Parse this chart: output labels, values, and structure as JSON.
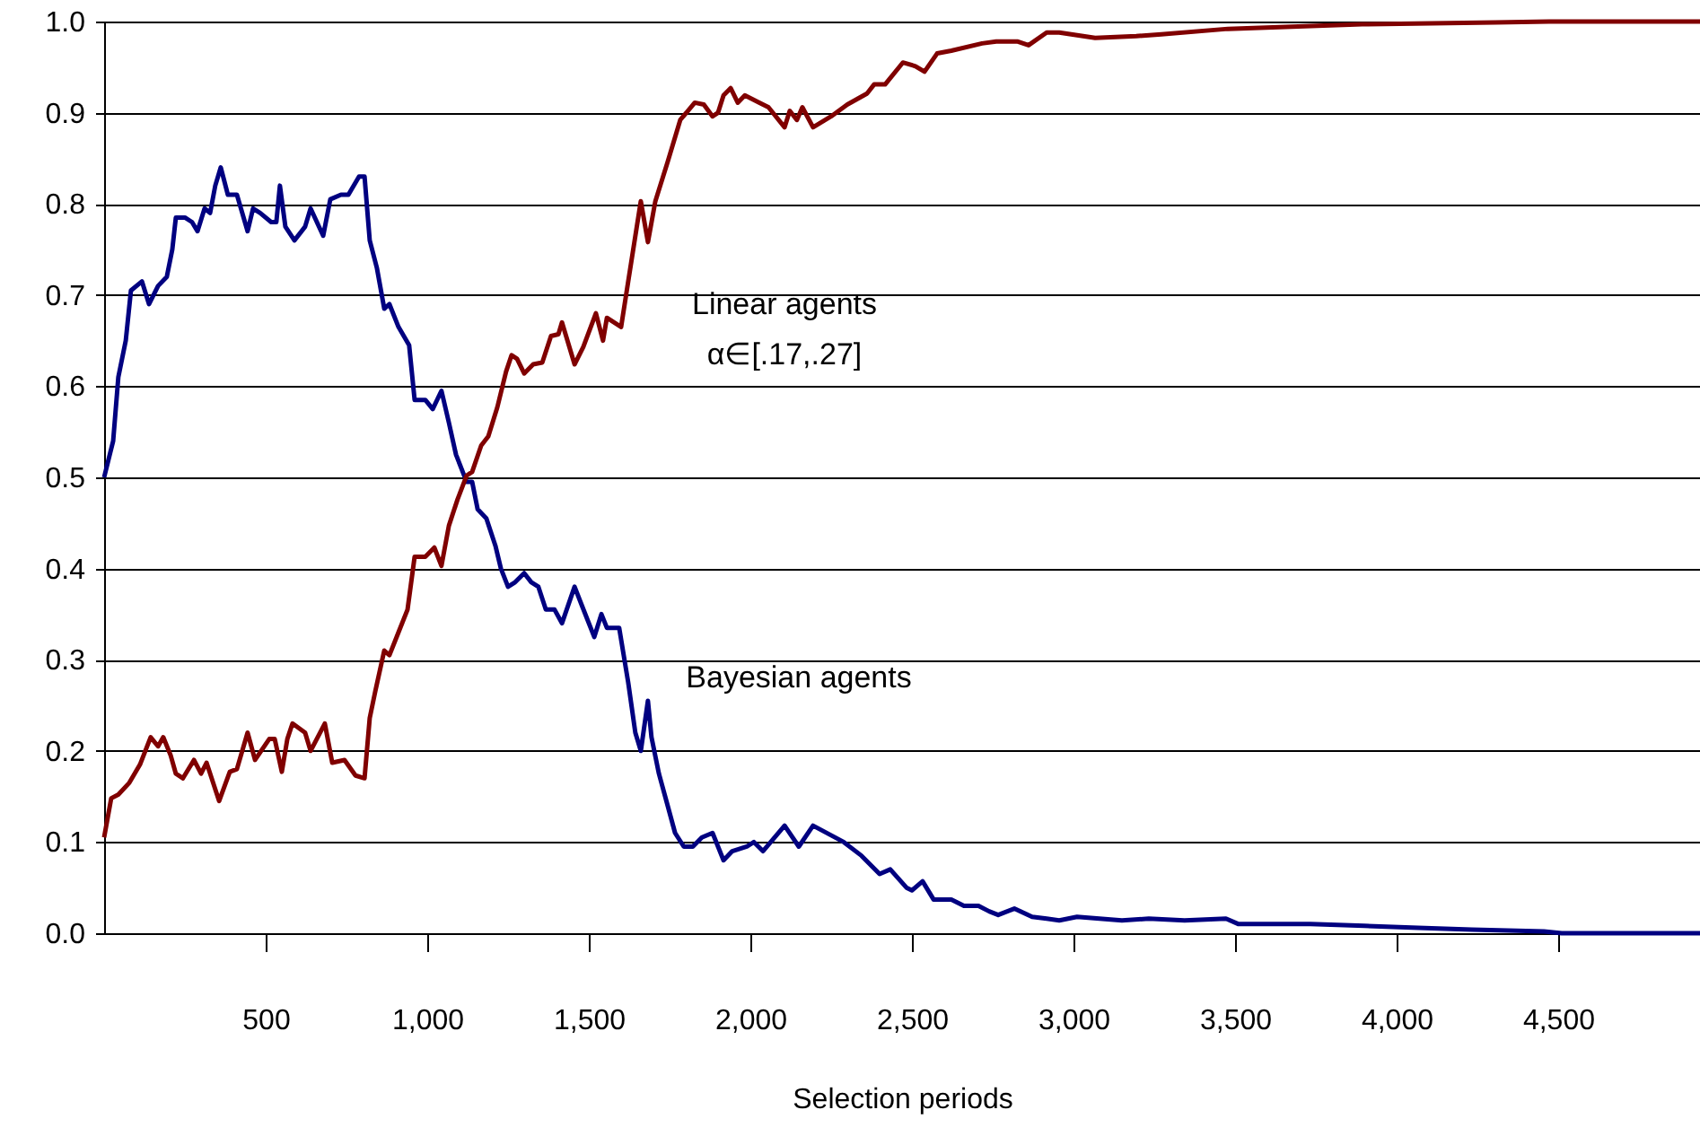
{
  "chart_data": {
    "type": "line",
    "xlabel": "Selection periods",
    "xlim": [
      0,
      4939
    ],
    "xticks": [
      500,
      {
        "value": 1000,
        "label": "1,000"
      },
      {
        "value": 1500,
        "label": "1,500"
      },
      {
        "value": 2000,
        "label": "2,000"
      },
      {
        "value": 2500,
        "label": "2,500"
      },
      {
        "value": 3000,
        "label": "3,000"
      },
      {
        "value": 3500,
        "label": "3,500"
      },
      {
        "value": 4000,
        "label": "4,000"
      },
      {
        "value": 4500,
        "label": "4,500"
      }
    ],
    "ylim": [
      0,
      1
    ],
    "yticks": [
      {
        "value": 0,
        "label": "0.0"
      },
      {
        "value": 0.1,
        "label": "0.1"
      },
      {
        "value": 0.2,
        "label": "0.2"
      },
      {
        "value": 0.3,
        "label": "0.3"
      },
      {
        "value": 0.4,
        "label": "0.4"
      },
      {
        "value": 0.5,
        "label": "0.5"
      },
      {
        "value": 0.6,
        "label": "0.6"
      },
      {
        "value": 0.7,
        "label": "0.7"
      },
      {
        "value": 0.8,
        "label": "0.8"
      },
      {
        "value": 0.9,
        "label": "0.9"
      },
      {
        "value": 1,
        "label": "1.0"
      }
    ],
    "grid": "y",
    "marker": "none",
    "line_style": "solid",
    "annotations": [
      "Linear agents\nα∈[.17,.27]",
      "Bayesian agents"
    ],
    "series": [
      {
        "color": "#000080",
        "x": [
          0,
          28,
          44,
          67,
          83,
          117,
          139,
          167,
          194,
          211,
          222,
          250,
          272,
          289,
          311,
          328,
          344,
          361,
          383,
          411,
          444,
          461,
          483,
          517,
          533,
          544,
          561,
          589,
          622,
          639,
          678,
          700,
          733,
          756,
          789,
          806,
          822,
          844,
          867,
          883,
          911,
          944,
          961,
          994,
          1017,
          1044,
          1067,
          1089,
          1122,
          1139,
          1156,
          1183,
          1211,
          1228,
          1250,
          1272,
          1300,
          1322,
          1344,
          1367,
          1394,
          1417,
          1456,
          1478,
          1517,
          1539,
          1556,
          1594,
          1622,
          1644,
          1661,
          1683,
          1694,
          1717,
          1744,
          1767,
          1794,
          1822,
          1850,
          1883,
          1917,
          1944,
          1989,
          2011,
          2039,
          2106,
          2150,
          2194,
          2289,
          2344,
          2400,
          2433,
          2483,
          2500,
          2533,
          2567,
          2622,
          2661,
          2706,
          2739,
          2767,
          2817,
          2872,
          2917,
          2956,
          3011,
          3150,
          3233,
          3344,
          3472,
          3511,
          3733,
          3900,
          4067,
          4233,
          4456,
          4511,
          4939
        ],
        "values": [
          0.5,
          0.54,
          0.61,
          0.65,
          0.705,
          0.715,
          0.69,
          0.71,
          0.72,
          0.75,
          0.785,
          0.785,
          0.78,
          0.77,
          0.795,
          0.79,
          0.82,
          0.84,
          0.81,
          0.81,
          0.77,
          0.795,
          0.79,
          0.78,
          0.78,
          0.82,
          0.775,
          0.76,
          0.775,
          0.795,
          0.765,
          0.805,
          0.81,
          0.81,
          0.83,
          0.83,
          0.76,
          0.73,
          0.685,
          0.69,
          0.665,
          0.645,
          0.585,
          0.585,
          0.575,
          0.595,
          0.56,
          0.525,
          0.495,
          0.495,
          0.465,
          0.455,
          0.425,
          0.4,
          0.38,
          0.385,
          0.395,
          0.385,
          0.38,
          0.355,
          0.355,
          0.34,
          0.38,
          0.36,
          0.325,
          0.35,
          0.335,
          0.335,
          0.275,
          0.22,
          0.2,
          0.255,
          0.215,
          0.175,
          0.14,
          0.11,
          0.095,
          0.095,
          0.105,
          0.11,
          0.08,
          0.09,
          0.095,
          0.1,
          0.09,
          0.118,
          0.095,
          0.118,
          0.1,
          0.085,
          0.065,
          0.07,
          0.05,
          0.047,
          0.057,
          0.037,
          0.037,
          0.03,
          0.03,
          0.024,
          0.02,
          0.027,
          0.018,
          0.016,
          0.014,
          0.018,
          0.014,
          0.016,
          0.014,
          0.016,
          0.01,
          0.01,
          0.008,
          0.006,
          0.004,
          0.002,
          0,
          0
        ]
      },
      {
        "color": "#800000",
        "x": [
          0,
          22,
          44,
          78,
          111,
          144,
          167,
          183,
          206,
          222,
          244,
          278,
          300,
          317,
          356,
          389,
          411,
          444,
          467,
          511,
          528,
          550,
          567,
          583,
          622,
          639,
          683,
          706,
          744,
          778,
          806,
          822,
          839,
          867,
          883,
          911,
          939,
          961,
          994,
          1022,
          1044,
          1067,
          1094,
          1122,
          1139,
          1167,
          1189,
          1217,
          1244,
          1261,
          1278,
          1300,
          1328,
          1356,
          1383,
          1406,
          1417,
          1456,
          1483,
          1522,
          1544,
          1556,
          1600,
          1622,
          1661,
          1683,
          1706,
          1744,
          1783,
          1828,
          1856,
          1883,
          1900,
          1917,
          1939,
          1961,
          1983,
          2028,
          2056,
          2106,
          2122,
          2144,
          2161,
          2194,
          2250,
          2300,
          2361,
          2383,
          2417,
          2472,
          2511,
          2539,
          2578,
          2622,
          2717,
          2761,
          2828,
          2861,
          2917,
          2956,
          3067,
          3194,
          3272,
          3478,
          3894,
          4306,
          4472,
          4939
        ],
        "values": [
          0.105,
          0.148,
          0.152,
          0.165,
          0.185,
          0.215,
          0.205,
          0.215,
          0.195,
          0.175,
          0.17,
          0.19,
          0.175,
          0.187,
          0.145,
          0.177,
          0.18,
          0.22,
          0.19,
          0.213,
          0.213,
          0.177,
          0.213,
          0.23,
          0.22,
          0.2,
          0.23,
          0.187,
          0.19,
          0.173,
          0.17,
          0.236,
          0.265,
          0.31,
          0.305,
          0.33,
          0.355,
          0.413,
          0.413,
          0.423,
          0.403,
          0.447,
          0.476,
          0.502,
          0.506,
          0.535,
          0.545,
          0.577,
          0.616,
          0.634,
          0.63,
          0.614,
          0.624,
          0.626,
          0.655,
          0.657,
          0.67,
          0.624,
          0.643,
          0.68,
          0.65,
          0.675,
          0.665,
          0.715,
          0.803,
          0.758,
          0.803,
          0.846,
          0.892,
          0.911,
          0.909,
          0.896,
          0.9,
          0.919,
          0.927,
          0.911,
          0.919,
          0.911,
          0.906,
          0.884,
          0.902,
          0.892,
          0.906,
          0.884,
          0.896,
          0.909,
          0.921,
          0.931,
          0.931,
          0.955,
          0.951,
          0.945,
          0.965,
          0.968,
          0.976,
          0.978,
          0.978,
          0.974,
          0.988,
          0.988,
          0.982,
          0.984,
          0.986,
          0.992,
          0.997,
          0.999,
          1.0,
          1.0
        ]
      }
    ]
  }
}
